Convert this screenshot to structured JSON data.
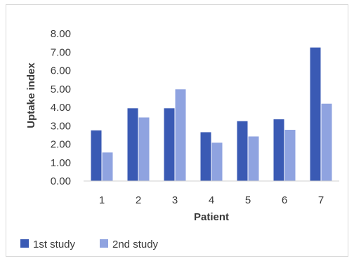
{
  "chart_data": {
    "type": "bar",
    "title": "",
    "xlabel": "Patient",
    "ylabel": "Uptake index",
    "categories": [
      "1",
      "2",
      "3",
      "4",
      "5",
      "6",
      "7"
    ],
    "ylim": [
      0,
      8
    ],
    "yticks": [
      "0.00",
      "1.00",
      "2.00",
      "3.00",
      "4.00",
      "5.00",
      "6.00",
      "7.00",
      "8.00"
    ],
    "grid": false,
    "legend_position": "bottom-left",
    "series": [
      {
        "name": "1st study",
        "color": "#3a5ab4",
        "values": [
          2.75,
          3.95,
          3.95,
          2.65,
          3.25,
          3.35,
          7.25
        ]
      },
      {
        "name": "2nd study",
        "color": "#8fa3e0",
        "values": [
          1.55,
          3.45,
          4.98,
          2.08,
          2.42,
          2.78,
          4.2
        ]
      }
    ]
  }
}
